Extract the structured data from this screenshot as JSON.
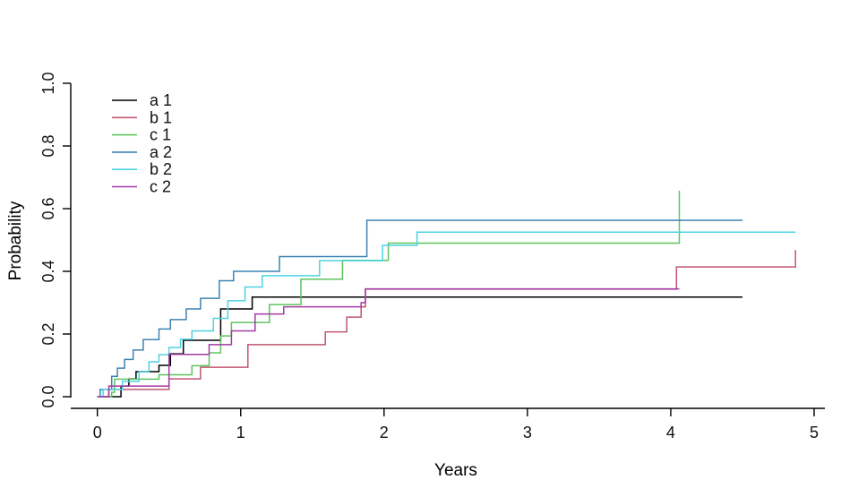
{
  "chart_data": {
    "type": "line",
    "subtype": "step-cumulative-incidence",
    "title": "",
    "xlabel": "Years",
    "ylabel": "Probability",
    "xlim": [
      0,
      5
    ],
    "ylim": [
      0.0,
      1.0
    ],
    "x_ticks": [
      {
        "value": 0,
        "label": "0"
      },
      {
        "value": 1,
        "label": "1"
      },
      {
        "value": 2,
        "label": "2"
      },
      {
        "value": 3,
        "label": "3"
      },
      {
        "value": 4,
        "label": "4"
      },
      {
        "value": 5,
        "label": "5"
      }
    ],
    "y_ticks": [
      {
        "value": 0.0,
        "label": "0.0"
      },
      {
        "value": 0.2,
        "label": "0.2"
      },
      {
        "value": 0.4,
        "label": "0.4"
      },
      {
        "value": 0.6,
        "label": "0.6"
      },
      {
        "value": 0.8,
        "label": "0.8"
      },
      {
        "value": 1.0,
        "label": "1.0"
      }
    ],
    "grid": false,
    "legend_position": "top-left",
    "axis_color": "#000000",
    "series": [
      {
        "name": "a 1",
        "color": "#000000",
        "start": [
          0,
          0
        ],
        "end": 4.5,
        "steps": [
          [
            0.165,
            0.034
          ],
          [
            0.22,
            0.057
          ],
          [
            0.27,
            0.08
          ],
          [
            0.43,
            0.1
          ],
          [
            0.51,
            0.137
          ],
          [
            0.6,
            0.18
          ],
          [
            0.86,
            0.28
          ],
          [
            1.08,
            0.318
          ]
        ]
      },
      {
        "name": "b 1",
        "color": "#c1566f",
        "start": [
          0,
          0
        ],
        "end": 4.87,
        "steps": [
          [
            0.08,
            0.023
          ],
          [
            0.5,
            0.057
          ],
          [
            0.72,
            0.094
          ],
          [
            1.05,
            0.166
          ],
          [
            1.59,
            0.207
          ],
          [
            1.74,
            0.254
          ],
          [
            1.84,
            0.287
          ],
          [
            1.87,
            0.343
          ],
          [
            4.04,
            0.414
          ],
          [
            4.87,
            0.468
          ]
        ]
      },
      {
        "name": "c 1",
        "color": "#5ec45e",
        "start": [
          0,
          0
        ],
        "end": 4.06,
        "steps": [
          [
            0.1,
            0.014
          ],
          [
            0.12,
            0.056
          ],
          [
            0.43,
            0.07
          ],
          [
            0.66,
            0.099
          ],
          [
            0.78,
            0.14
          ],
          [
            0.86,
            0.194
          ],
          [
            0.935,
            0.237
          ],
          [
            1.2,
            0.294
          ],
          [
            1.42,
            0.375
          ],
          [
            1.71,
            0.435
          ],
          [
            2.03,
            0.49
          ],
          [
            4.06,
            0.657
          ]
        ]
      },
      {
        "name": "a 2",
        "color": "#3d82b2",
        "start": [
          0,
          0
        ],
        "end": 4.5,
        "steps": [
          [
            0.02,
            0.023
          ],
          [
            0.1,
            0.065
          ],
          [
            0.14,
            0.091
          ],
          [
            0.19,
            0.119
          ],
          [
            0.25,
            0.149
          ],
          [
            0.32,
            0.182
          ],
          [
            0.43,
            0.216
          ],
          [
            0.51,
            0.246
          ],
          [
            0.62,
            0.28
          ],
          [
            0.72,
            0.314
          ],
          [
            0.85,
            0.37
          ],
          [
            0.95,
            0.4
          ],
          [
            1.27,
            0.447
          ],
          [
            1.88,
            0.563
          ]
        ]
      },
      {
        "name": "b 2",
        "color": "#4ed3e2",
        "start": [
          0,
          0
        ],
        "end": 4.87,
        "steps": [
          [
            0.04,
            0.023
          ],
          [
            0.175,
            0.049
          ],
          [
            0.29,
            0.08
          ],
          [
            0.36,
            0.111
          ],
          [
            0.43,
            0.134
          ],
          [
            0.5,
            0.157
          ],
          [
            0.58,
            0.183
          ],
          [
            0.66,
            0.21
          ],
          [
            0.81,
            0.25
          ],
          [
            0.91,
            0.306
          ],
          [
            1.03,
            0.35
          ],
          [
            1.15,
            0.386
          ],
          [
            1.55,
            0.434
          ],
          [
            1.99,
            0.483
          ],
          [
            2.23,
            0.525
          ]
        ]
      },
      {
        "name": "c 2",
        "color": "#a23aa5",
        "start": [
          0,
          0
        ],
        "end": 4.06,
        "steps": [
          [
            0.08,
            0.034
          ],
          [
            0.5,
            0.135
          ],
          [
            0.78,
            0.166
          ],
          [
            0.935,
            0.21
          ],
          [
            1.1,
            0.264
          ],
          [
            1.3,
            0.287
          ],
          [
            1.84,
            0.3
          ],
          [
            1.87,
            0.344
          ]
        ]
      }
    ],
    "legend": [
      {
        "label": "a 1",
        "color": "#000000"
      },
      {
        "label": "b 1",
        "color": "#c1566f"
      },
      {
        "label": "c 1",
        "color": "#5ec45e"
      },
      {
        "label": "a 2",
        "color": "#3d82b2"
      },
      {
        "label": "b 2",
        "color": "#4ed3e2"
      },
      {
        "label": "c 2",
        "color": "#a23aa5"
      }
    ]
  }
}
